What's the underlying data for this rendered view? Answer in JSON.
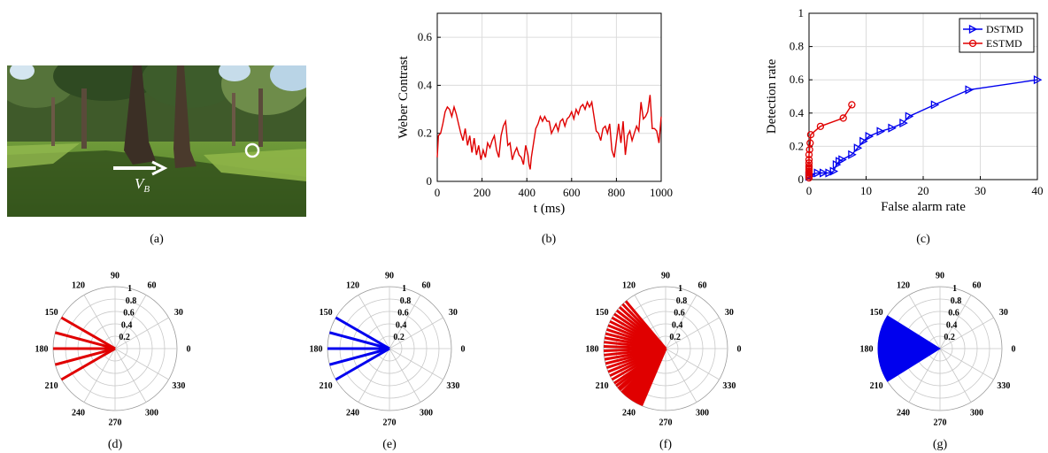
{
  "captions": [
    "(a)",
    "(b)",
    "(c)",
    "(d)",
    "(e)",
    "(f)",
    "(g)"
  ],
  "photo": {
    "velocity_label_main": "V",
    "velocity_label_sub": "B"
  },
  "colors": {
    "red": "#e00000",
    "blue": "#0000ee",
    "grid": "#dcdcdc",
    "axis": "#000000"
  },
  "chart_data": [
    {
      "type": "line",
      "xlabel": "t (ms)",
      "ylabel": "Weber Contrast",
      "xlim": [
        0,
        1000
      ],
      "ylim": [
        0,
        0.7
      ],
      "xticks": [
        0,
        200,
        400,
        600,
        800,
        1000
      ],
      "yticks": [
        0,
        0.2,
        0.4,
        0.6
      ],
      "grid": true,
      "series": [
        {
          "color": "#e00000",
          "x": [
            0,
            5,
            15,
            25,
            35,
            45,
            55,
            65,
            75,
            85,
            95,
            105,
            115,
            125,
            135,
            145,
            155,
            165,
            175,
            185,
            195,
            205,
            215,
            225,
            235,
            245,
            255,
            265,
            275,
            285,
            295,
            305,
            315,
            325,
            335,
            345,
            355,
            365,
            375,
            385,
            395,
            405,
            410,
            415,
            420,
            430,
            440,
            450,
            460,
            470,
            480,
            490,
            500,
            510,
            520,
            530,
            540,
            550,
            560,
            570,
            580,
            590,
            600,
            610,
            620,
            630,
            640,
            650,
            660,
            670,
            680,
            690,
            700,
            710,
            720,
            730,
            740,
            750,
            760,
            770,
            780,
            790,
            800,
            810,
            820,
            830,
            840,
            850,
            860,
            870,
            880,
            890,
            900,
            910,
            920,
            930,
            940,
            950,
            960,
            970,
            980,
            990,
            1000
          ],
          "y": [
            0.1,
            0.19,
            0.2,
            0.24,
            0.29,
            0.31,
            0.3,
            0.27,
            0.31,
            0.28,
            0.24,
            0.2,
            0.17,
            0.22,
            0.15,
            0.19,
            0.12,
            0.18,
            0.11,
            0.15,
            0.09,
            0.13,
            0.1,
            0.16,
            0.14,
            0.17,
            0.19,
            0.13,
            0.1,
            0.19,
            0.23,
            0.25,
            0.15,
            0.16,
            0.09,
            0.12,
            0.14,
            0.11,
            0.1,
            0.07,
            0.15,
            0.11,
            0.07,
            0.05,
            0.1,
            0.16,
            0.22,
            0.24,
            0.27,
            0.25,
            0.27,
            0.25,
            0.25,
            0.2,
            0.22,
            0.24,
            0.21,
            0.25,
            0.26,
            0.23,
            0.26,
            0.27,
            0.29,
            0.26,
            0.3,
            0.28,
            0.31,
            0.32,
            0.3,
            0.33,
            0.31,
            0.33,
            0.27,
            0.21,
            0.2,
            0.17,
            0.22,
            0.23,
            0.2,
            0.24,
            0.13,
            0.1,
            0.17,
            0.24,
            0.16,
            0.25,
            0.11,
            0.19,
            0.21,
            0.17,
            0.2,
            0.23,
            0.21,
            0.33,
            0.26,
            0.27,
            0.29,
            0.36,
            0.22,
            0.22,
            0.21,
            0.16,
            0.27
          ]
        }
      ]
    },
    {
      "type": "line",
      "xlabel": "False alarm rate",
      "ylabel": "Detection rate",
      "xlim": [
        0,
        40
      ],
      "ylim": [
        0,
        1
      ],
      "xticks": [
        0,
        10,
        20,
        30,
        40
      ],
      "yticks": [
        0,
        0.2,
        0.4,
        0.6,
        0.8,
        1
      ],
      "grid": true,
      "legend": "top-right",
      "series": [
        {
          "name": "DSTMD",
          "color": "#0000ee",
          "marker": "triangle-right",
          "x": [
            0,
            0.1,
            0.2,
            1.5,
            2.5,
            3.5,
            4.3,
            4.8,
            5.3,
            5.8,
            7.5,
            8.5,
            9.5,
            10.5,
            12.5,
            14.5,
            16.5,
            17.5,
            22,
            28,
            40
          ],
          "y": [
            0.02,
            0.02,
            0.03,
            0.04,
            0.04,
            0.04,
            0.05,
            0.09,
            0.11,
            0.12,
            0.15,
            0.19,
            0.23,
            0.26,
            0.29,
            0.31,
            0.34,
            0.38,
            0.45,
            0.54,
            0.6
          ]
        },
        {
          "name": "ESTMD",
          "color": "#e00000",
          "marker": "circle",
          "x": [
            0,
            0,
            0,
            0,
            0,
            0,
            0,
            0,
            0,
            0,
            0,
            0.1,
            0.2,
            0.3,
            2,
            6,
            7.5
          ],
          "y": [
            0.01,
            0.02,
            0.03,
            0.04,
            0.05,
            0.06,
            0.07,
            0.08,
            0.1,
            0.12,
            0.15,
            0.18,
            0.22,
            0.27,
            0.32,
            0.37,
            0.45
          ]
        }
      ]
    },
    {
      "type": "polar",
      "style": "lines",
      "color": "#e00000",
      "rticks": [
        "0.2",
        "0.4",
        "0.6",
        "0.8",
        "1"
      ],
      "angle_ticks": [
        "0",
        "30",
        "60",
        "90",
        "120",
        "150",
        "180",
        "210",
        "240",
        "270",
        "300",
        "330"
      ],
      "angles_deg": [
        150,
        165,
        180,
        195,
        210
      ],
      "radius": 1
    },
    {
      "type": "polar",
      "style": "lines",
      "color": "#0000ee",
      "rticks": [
        "0.2",
        "0.4",
        "0.6",
        "0.8",
        "1"
      ],
      "angle_ticks": [
        "0",
        "30",
        "60",
        "90",
        "120",
        "150",
        "180",
        "210",
        "240",
        "270",
        "300",
        "330"
      ],
      "angles_deg": [
        150,
        165,
        180,
        195,
        210
      ],
      "radius": 1
    },
    {
      "type": "polar",
      "style": "lines",
      "color": "#e00000",
      "rticks": [
        "0.2",
        "0.4",
        "0.6",
        "0.8",
        "1"
      ],
      "angle_ticks": [
        "0",
        "30",
        "60",
        "90",
        "120",
        "150",
        "180",
        "210",
        "240",
        "270",
        "300",
        "330"
      ],
      "angles_deg": [
        130,
        134,
        138,
        142,
        146,
        150,
        154,
        158,
        162,
        166,
        170,
        174,
        178,
        182,
        186,
        190,
        194,
        198,
        202,
        206,
        210,
        214,
        217,
        220,
        222,
        225,
        227,
        229,
        231,
        233,
        235,
        237,
        239,
        241,
        243,
        245,
        247
      ],
      "radius": 1
    },
    {
      "type": "polar",
      "style": "sector",
      "color": "#0000ee",
      "rticks": [
        "0.2",
        "0.4",
        "0.6",
        "0.8",
        "1"
      ],
      "angle_ticks": [
        "0",
        "30",
        "60",
        "90",
        "120",
        "150",
        "180",
        "210",
        "240",
        "270",
        "300",
        "330"
      ],
      "angle_range": [
        148,
        212
      ],
      "radius": 1
    }
  ]
}
